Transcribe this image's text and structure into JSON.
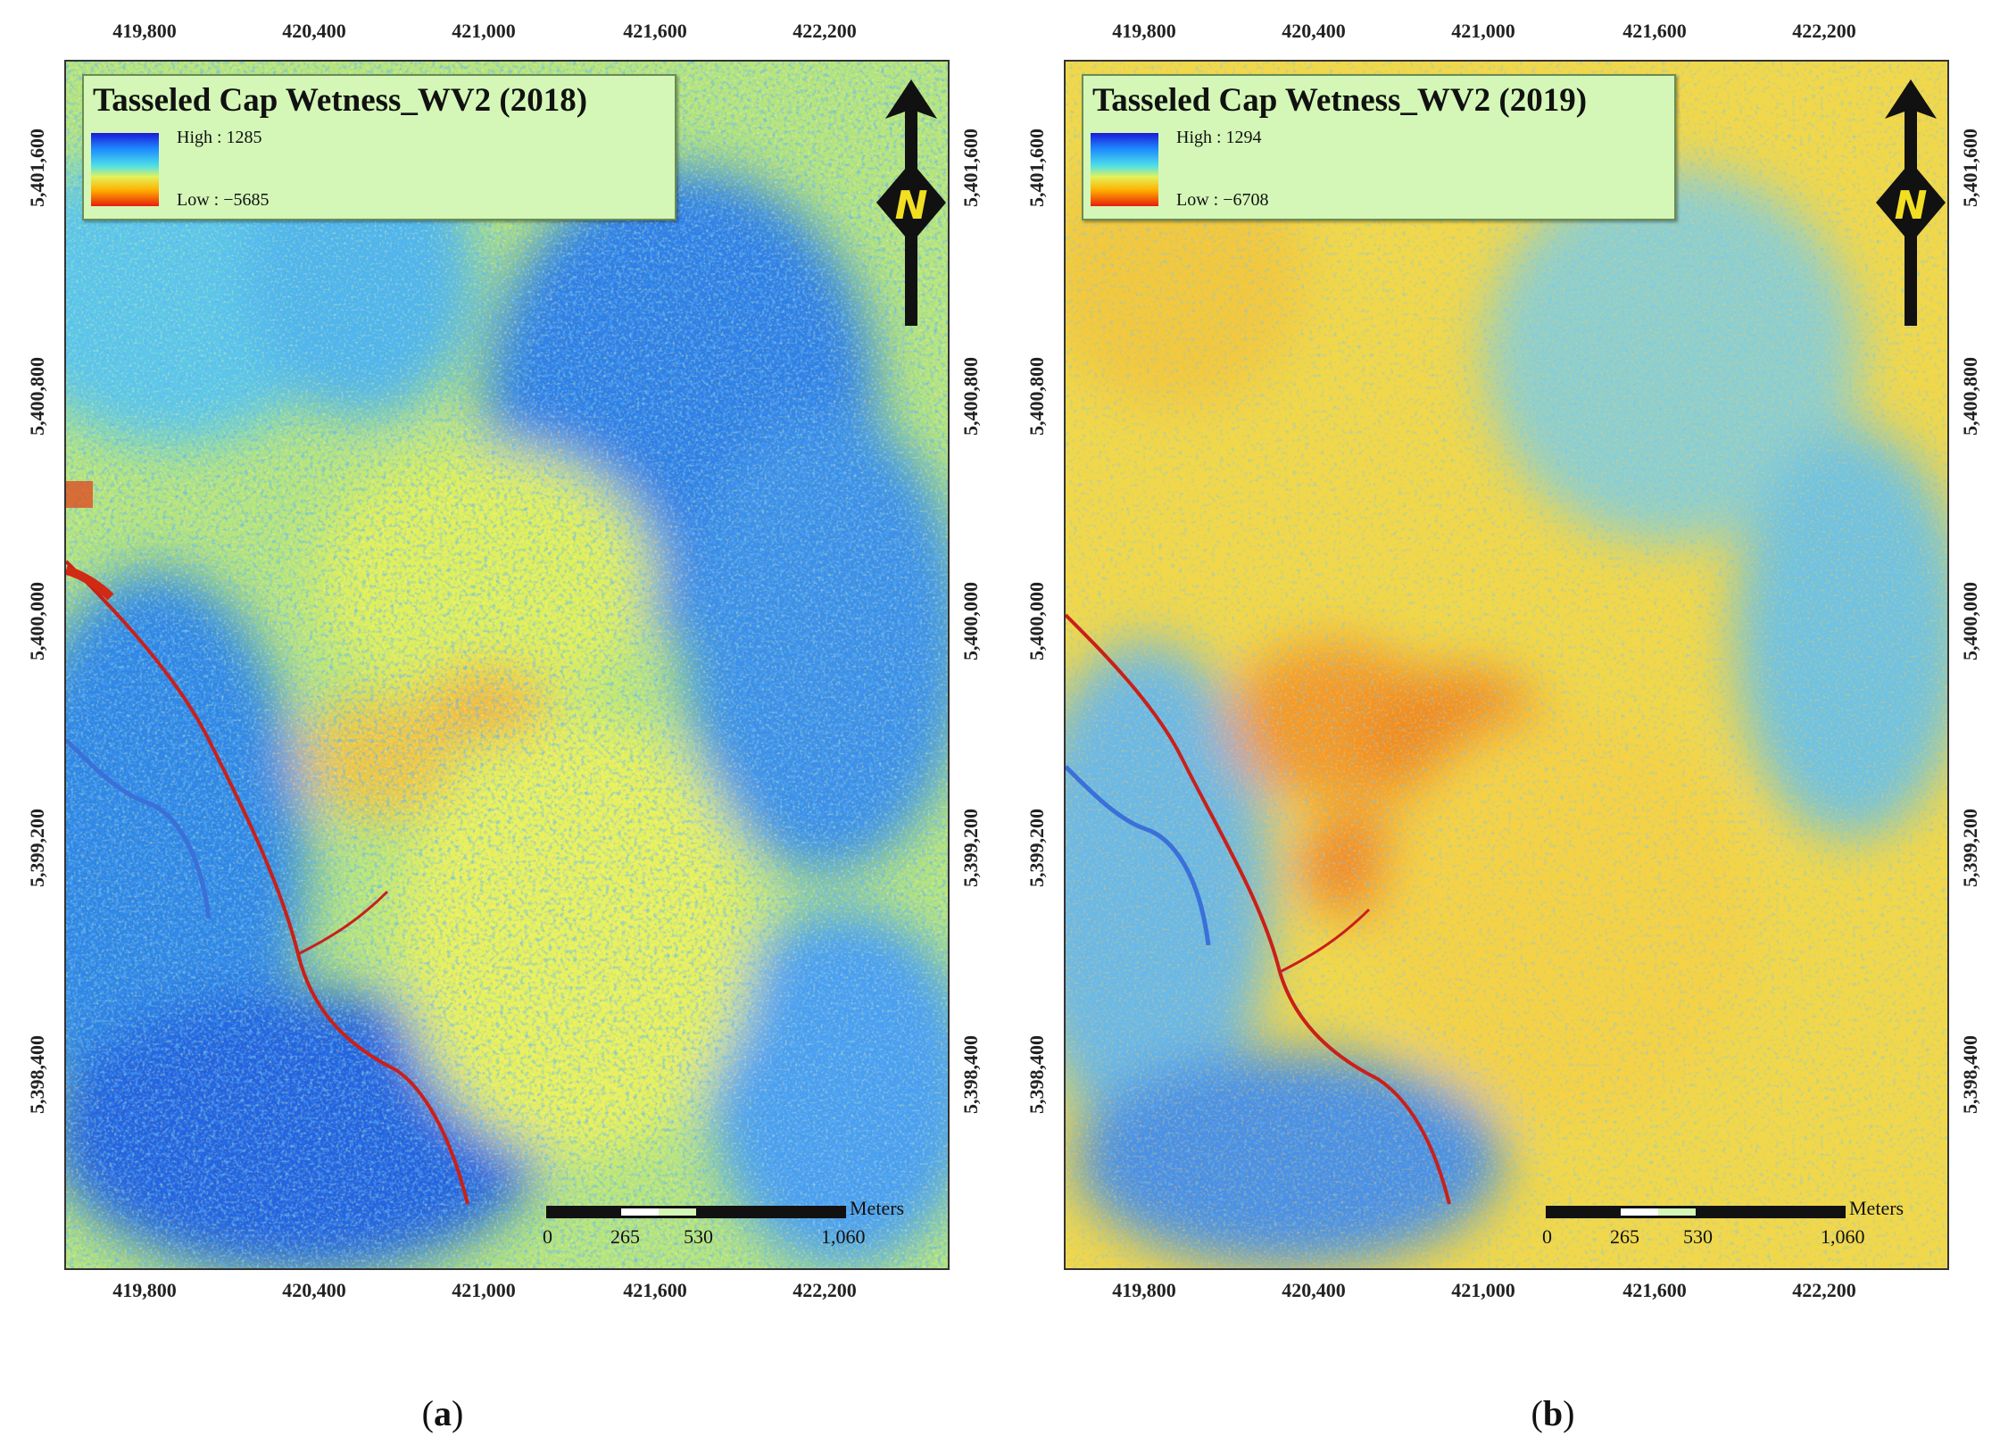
{
  "panels": [
    {
      "id": "a",
      "title": "Tasseled Cap Wetness_WV2 (2018)",
      "legend_high": "High : 1285",
      "legend_low": "Low : −5685",
      "caption_open": "(",
      "caption_letter": "a",
      "caption_close": ")",
      "tone": "wet"
    },
    {
      "id": "b",
      "title": "Tasseled Cap Wetness_WV2 (2019)",
      "legend_high": "High : 1294",
      "legend_low": "Low : −6708",
      "caption_open": "(",
      "caption_letter": "b",
      "caption_close": ")",
      "tone": "dry"
    }
  ],
  "x_ticks": [
    "419,800",
    "420,400",
    "421,000",
    "421,600",
    "422,200"
  ],
  "y_ticks": [
    "5,401,600",
    "5,400,800",
    "5,400,000",
    "5,399,200",
    "5,398,400"
  ],
  "north_label": "N",
  "scale": {
    "unit": "Meters",
    "labels": [
      "0",
      "265",
      "530",
      "1,060"
    ]
  },
  "colors": {
    "high": "#1a1ad6",
    "mid_high": "#1e8bff",
    "mid": "#4fe0e8",
    "mid_low": "#e4f25a",
    "low_mid": "#ffb000",
    "low": "#e81e0a",
    "legend_bg": "#d4f7b8"
  }
}
